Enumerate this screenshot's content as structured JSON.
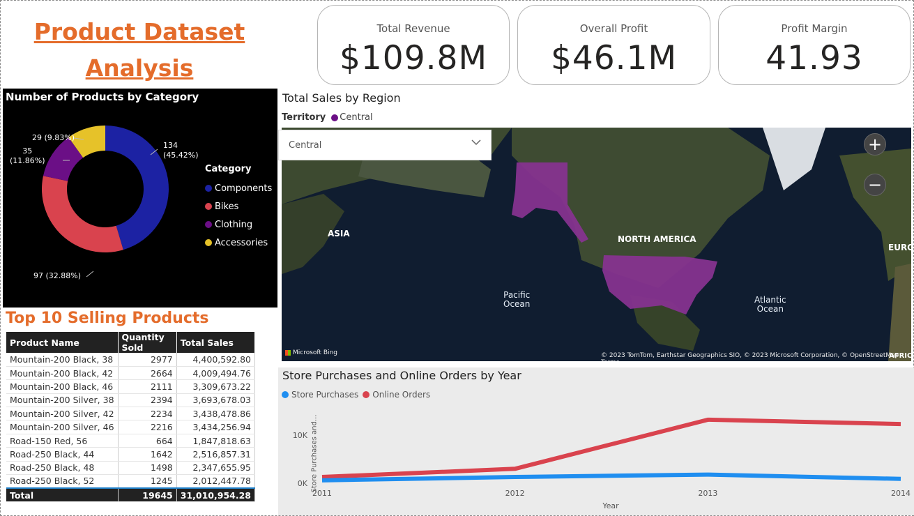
{
  "title": {
    "line1": "Product Dataset ",
    "line2": "Analysis"
  },
  "kpis": [
    {
      "label": "Total Revenue",
      "value": "$109.8M"
    },
    {
      "label": "Overall Profit",
      "value": "$46.1M"
    },
    {
      "label": "Profit Margin",
      "value": "41.93"
    }
  ],
  "donut": {
    "title": "Number of Products by Category",
    "legend_title": "Category",
    "items": [
      {
        "name": "Components",
        "value": 134,
        "label": "134\n(45.42%)",
        "color": "#1c22a3"
      },
      {
        "name": "Bikes",
        "value": 97,
        "label": "97 (32.88%)",
        "color": "#d9434e"
      },
      {
        "name": "Clothing",
        "value": 35,
        "label": "35\n(11.86%)",
        "color": "#6b0f86"
      },
      {
        "name": "Accessories",
        "value": 29,
        "label": "29 (9.83%)",
        "color": "#e6c229"
      }
    ]
  },
  "table": {
    "title": "Top 10 Selling Products",
    "columns": [
      "Product Name",
      "Quantity Sold",
      "Total Sales"
    ],
    "rows": [
      [
        "Mountain-200 Black, 38",
        "2977",
        "4,400,592.80"
      ],
      [
        "Mountain-200 Black, 42",
        "2664",
        "4,009,494.76"
      ],
      [
        "Mountain-200 Black, 46",
        "2111",
        "3,309,673.22"
      ],
      [
        "Mountain-200 Silver, 38",
        "2394",
        "3,693,678.03"
      ],
      [
        "Mountain-200 Silver, 42",
        "2234",
        "3,438,478.86"
      ],
      [
        "Mountain-200 Silver, 46",
        "2216",
        "3,434,256.94"
      ],
      [
        "Road-150 Red, 56",
        "664",
        "1,847,818.63"
      ],
      [
        "Road-250 Black, 44",
        "1642",
        "2,516,857.31"
      ],
      [
        "Road-250 Black, 48",
        "1498",
        "2,347,655.95"
      ],
      [
        "Road-250 Black, 52",
        "1245",
        "2,012,447.78"
      ]
    ],
    "total": [
      "Total",
      "19645",
      "31,010,954.28"
    ]
  },
  "map": {
    "title": "Total Sales by Region",
    "territory_label": "Territory",
    "territory_value": "Central",
    "territory_color": "#6b0f86",
    "dropdown_value": "Central",
    "labels": {
      "asia": "ASIA",
      "north_america": "NORTH AMERICA",
      "europe": "EURO",
      "africa": "AFRIC"
    },
    "oceans": {
      "pacific": "Pacific\nOcean",
      "atlantic": "Atlantic\nOcean"
    },
    "bing": "Microsoft Bing",
    "attribution": "© 2023 TomTom, Earthstar Geographics SIO, © 2023 Microsoft Corporation, © OpenStreetMap  Terms",
    "zoom_in": "+",
    "zoom_out": "−"
  },
  "line_chart_title": "Store Purchases and Online Orders by Year",
  "chart_data": {
    "type": "line",
    "x": [
      2011,
      2012,
      2013,
      2014
    ],
    "series": [
      {
        "name": "Store Purchases",
        "color": "#1f8ef0",
        "values": [
          600,
          1300,
          1800,
          900
        ]
      },
      {
        "name": "Online Orders",
        "color": "#d9434e",
        "values": [
          1300,
          3000,
          13200,
          12300
        ]
      }
    ],
    "xlabel": "Year",
    "ylabel": "Store Purchases and...",
    "y_ticks": [
      "0K",
      "10K"
    ],
    "x_ticks": [
      "2011",
      "2012",
      "2013",
      "2014"
    ],
    "ylim": [
      0,
      14000
    ]
  }
}
